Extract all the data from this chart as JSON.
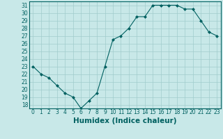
{
  "title": "",
  "xlabel": "Humidex (Indice chaleur)",
  "ylabel": "",
  "x": [
    0,
    1,
    2,
    3,
    4,
    5,
    6,
    7,
    8,
    9,
    10,
    11,
    12,
    13,
    14,
    15,
    16,
    17,
    18,
    19,
    20,
    21,
    22,
    23
  ],
  "y": [
    23,
    22,
    21.5,
    20.5,
    19.5,
    19,
    17.5,
    18.5,
    19.5,
    23,
    26.5,
    27,
    28,
    29.5,
    29.5,
    31,
    31,
    31,
    31,
    30.5,
    30.5,
    29,
    27.5,
    27
  ],
  "line_color": "#006060",
  "marker": "D",
  "marker_size": 2.0,
  "bg_color": "#c8e8e8",
  "grid_color": "#a0cccc",
  "tick_label_fontsize": 5.5,
  "xlabel_fontsize": 7.5,
  "ylim": [
    17.5,
    31.5
  ],
  "yticks": [
    18,
    19,
    20,
    21,
    22,
    23,
    24,
    25,
    26,
    27,
    28,
    29,
    30,
    31
  ],
  "xlim": [
    -0.5,
    23.5
  ],
  "xticks": [
    0,
    1,
    2,
    3,
    4,
    5,
    6,
    7,
    8,
    9,
    10,
    11,
    12,
    13,
    14,
    15,
    16,
    17,
    18,
    19,
    20,
    21,
    22,
    23
  ]
}
